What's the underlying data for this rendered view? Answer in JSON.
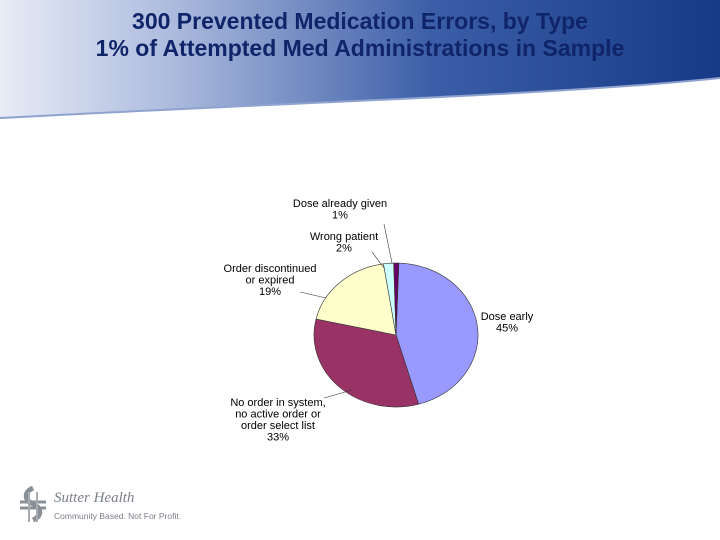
{
  "header": {
    "title_line1": "300 Prevented Medication Errors, by Type",
    "title_line2": "1% of Attempted Med Administrations in Sample"
  },
  "chart_data": {
    "type": "pie",
    "title": "",
    "slices": [
      {
        "label_lines": [
          "Dose early",
          "45%"
        ],
        "value": 45,
        "color": "#9999ff"
      },
      {
        "label_lines": [
          "No order in system,",
          "no active order or",
          "order select list",
          "33%"
        ],
        "value": 33,
        "color": "#993366"
      },
      {
        "label_lines": [
          "Order discontinued",
          "or expired",
          "19%"
        ],
        "value": 19,
        "color": "#ffffcc"
      },
      {
        "label_lines": [
          "Wrong patient",
          "2%"
        ],
        "value": 2,
        "color": "#ccffff"
      },
      {
        "label_lines": [
          "Dose already given",
          "1%"
        ],
        "value": 1,
        "color": "#660066"
      }
    ]
  },
  "logo": {
    "name": "Sutter Health",
    "tagline": "Community Based. Not For Profit."
  },
  "colors": {
    "title": "#10246a",
    "header_band": "#1a3d8c",
    "logo_gray": "#7a7f86"
  }
}
